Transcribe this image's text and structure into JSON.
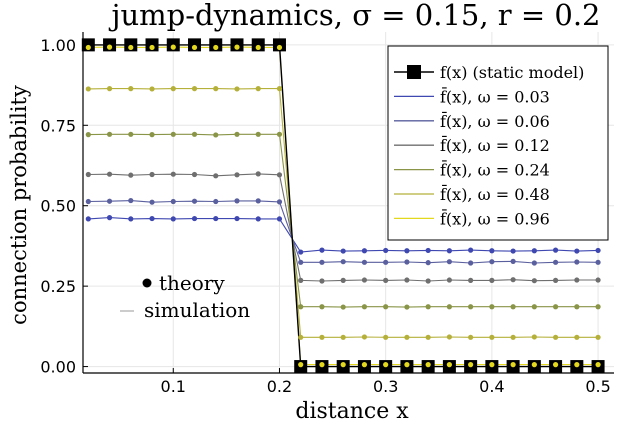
{
  "chart_data": {
    "type": "line",
    "title": "jump-dynamics,  σ = 0.15, r = 0.2",
    "xlabel": "distance x",
    "ylabel": "connection probability",
    "xlim": [
      0.015,
      0.515
    ],
    "ylim": [
      -0.02,
      1.04
    ],
    "x_ticks": [
      {
        "value": 0.1,
        "label": "0.1"
      },
      {
        "value": 0.2,
        "label": "0.2"
      },
      {
        "value": 0.3,
        "label": "0.3"
      },
      {
        "value": 0.4,
        "label": "0.4"
      },
      {
        "value": 0.5,
        "label": "0.5"
      }
    ],
    "y_ticks": [
      {
        "value": 0.0,
        "label": "0.00"
      },
      {
        "value": 0.25,
        "label": "0.25"
      },
      {
        "value": 0.5,
        "label": "0.50"
      },
      {
        "value": 0.75,
        "label": "0.75"
      },
      {
        "value": 1.0,
        "label": "1.00"
      }
    ],
    "grid": true,
    "legend_position": "top-right",
    "x": [
      0.02,
      0.04,
      0.06,
      0.08,
      0.1,
      0.12,
      0.14,
      0.16,
      0.18,
      0.2,
      0.22,
      0.24,
      0.26,
      0.28,
      0.3,
      0.32,
      0.34,
      0.36,
      0.38,
      0.4,
      0.42,
      0.44,
      0.46,
      0.48,
      0.5
    ],
    "static_model": {
      "name": "f(x)  (static model)",
      "color": "#000000",
      "values": [
        1,
        1,
        1,
        1,
        1,
        1,
        1,
        1,
        1,
        1,
        0,
        0,
        0,
        0,
        0,
        0,
        0,
        0,
        0,
        0,
        0,
        0,
        0,
        0,
        0
      ]
    },
    "series": [
      {
        "name": "f̄(x),  ω = 0.03",
        "color": "#3f48b0",
        "values": [
          0.459,
          0.463,
          0.459,
          0.46,
          0.459,
          0.46,
          0.46,
          0.46,
          0.459,
          0.459,
          0.356,
          0.362,
          0.359,
          0.36,
          0.361,
          0.36,
          0.361,
          0.36,
          0.362,
          0.36,
          0.359,
          0.36,
          0.362,
          0.359,
          0.361
        ]
      },
      {
        "name": "f̄(x),  ω = 0.06",
        "color": "#5a5f9e",
        "values": [
          0.513,
          0.514,
          0.516,
          0.511,
          0.513,
          0.514,
          0.513,
          0.515,
          0.515,
          0.512,
          0.324,
          0.324,
          0.326,
          0.324,
          0.324,
          0.325,
          0.323,
          0.326,
          0.322,
          0.326,
          0.327,
          0.322,
          0.324,
          0.325,
          0.324
        ]
      },
      {
        "name": "f̄(x),  ω = 0.12",
        "color": "#6f6f6f",
        "values": [
          0.597,
          0.598,
          0.595,
          0.597,
          0.598,
          0.597,
          0.593,
          0.596,
          0.599,
          0.596,
          0.268,
          0.266,
          0.268,
          0.269,
          0.268,
          0.269,
          0.266,
          0.269,
          0.268,
          0.268,
          0.27,
          0.267,
          0.268,
          0.269,
          0.269
        ]
      },
      {
        "name": "f̄(x),  ω = 0.24",
        "color": "#8a9548",
        "values": [
          0.721,
          0.722,
          0.722,
          0.721,
          0.722,
          0.722,
          0.72,
          0.722,
          0.722,
          0.722,
          0.186,
          0.186,
          0.185,
          0.186,
          0.186,
          0.185,
          0.186,
          0.186,
          0.186,
          0.186,
          0.186,
          0.186,
          0.186,
          0.186,
          0.186
        ]
      },
      {
        "name": "f̄(x),  ω = 0.48",
        "color": "#b5b03a",
        "values": [
          0.863,
          0.864,
          0.864,
          0.863,
          0.864,
          0.864,
          0.864,
          0.863,
          0.864,
          0.864,
          0.091,
          0.091,
          0.091,
          0.092,
          0.091,
          0.091,
          0.091,
          0.092,
          0.091,
          0.091,
          0.091,
          0.092,
          0.091,
          0.091,
          0.091
        ]
      },
      {
        "name": "f̄(x),  ω = 0.96",
        "color": "#e3d81e",
        "values": [
          0.992,
          0.993,
          0.992,
          0.992,
          0.993,
          0.992,
          0.992,
          0.993,
          0.992,
          0.992,
          0.006,
          0.006,
          0.006,
          0.006,
          0.006,
          0.006,
          0.006,
          0.006,
          0.006,
          0.006,
          0.006,
          0.006,
          0.006,
          0.006,
          0.006
        ]
      }
    ],
    "annotations": {
      "theory": "theory",
      "simulation": "simulation"
    }
  }
}
